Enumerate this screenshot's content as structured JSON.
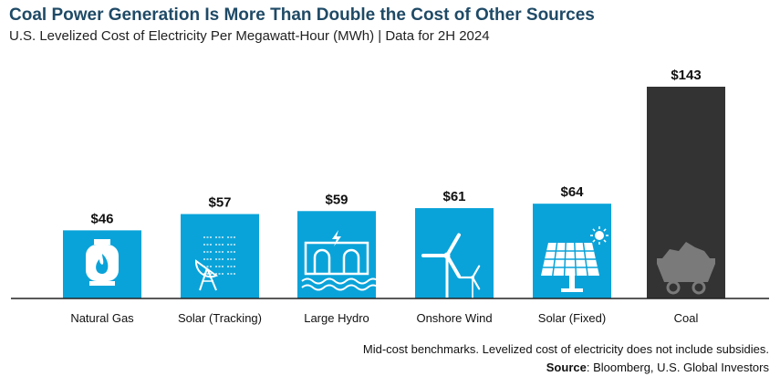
{
  "title": "Coal Power Generation Is More Than Double the Cost of Other Sources",
  "subtitle": "U.S. Levelized Cost of Electricity Per Megawatt-Hour (MWh) | Data for 2H 2024",
  "footnote": "Mid-cost benchmarks. Levelized cost of electricity does not include subsidies.",
  "source_label": "Source",
  "source_text": ": Bloomberg, U.S. Global Investors",
  "colors": {
    "bar": "#0aa3d9",
    "highlight": "#333333",
    "axis": "#222222"
  },
  "chart_data": {
    "type": "bar",
    "title": "Coal Power Generation Is More Than Double the Cost of Other Sources",
    "subtitle": "U.S. Levelized Cost of Electricity Per Megawatt-Hour (MWh) | Data for 2H 2024",
    "xlabel": "",
    "ylabel": "",
    "ylim": [
      0,
      150
    ],
    "grid": false,
    "categories": [
      "Natural Gas",
      "Solar (Tracking)",
      "Large Hydro",
      "Onshore Wind",
      "Solar (Fixed)",
      "Coal"
    ],
    "values": [
      46,
      57,
      59,
      61,
      64,
      143
    ],
    "value_labels": [
      "$46",
      "$57",
      "$59",
      "$61",
      "$64",
      "$143"
    ],
    "icons": [
      "gas-tank-icon",
      "solar-tracker-icon",
      "hydro-dam-icon",
      "wind-turbine-icon",
      "solar-panel-icon",
      "coal-cart-icon"
    ]
  }
}
